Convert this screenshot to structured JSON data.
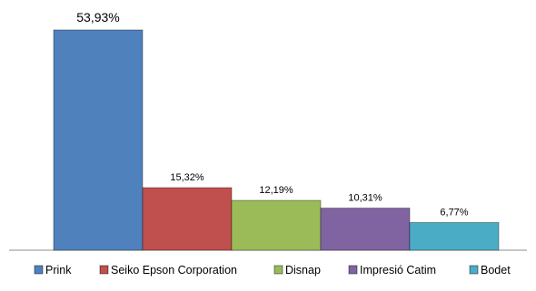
{
  "chart_data": {
    "type": "bar",
    "categories": [
      "Prink",
      "Seiko Epson Corporation",
      "Disnap",
      "Impresió Catim",
      "Bodet"
    ],
    "values": [
      53.93,
      15.32,
      12.19,
      10.31,
      6.77
    ],
    "data_labels": [
      "53,93%",
      "15,32%",
      "12,19%",
      "10,31%",
      "6,77%"
    ],
    "colors": [
      "#4f81bd",
      "#c0504d",
      "#9bbb59",
      "#8064a2",
      "#4bacc6"
    ],
    "ylim": [
      0,
      53.93
    ],
    "grid": false,
    "legend": "bottom"
  }
}
